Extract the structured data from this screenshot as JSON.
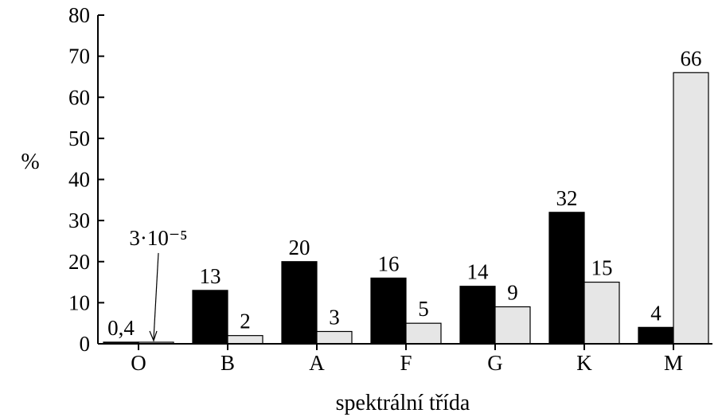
{
  "chart_data": {
    "type": "bar",
    "categories": [
      "O",
      "B",
      "A",
      "F",
      "G",
      "K",
      "M"
    ],
    "series": [
      {
        "color": "#000000",
        "values": [
          0.4,
          13,
          20,
          16,
          14,
          32,
          4
        ],
        "labels": [
          "0,4",
          "13",
          "20",
          "16",
          "14",
          "32",
          "4"
        ]
      },
      {
        "color": "#e6e6e6",
        "values": [
          3e-05,
          2,
          3,
          5,
          9,
          15,
          66
        ],
        "labels": [
          "3·10⁻⁵",
          "2",
          "3",
          "5",
          "9",
          "15",
          "66"
        ]
      }
    ],
    "xlabel": "spektrální třída",
    "ylabel": "%",
    "ylim": [
      0,
      80
    ],
    "yticks": [
      0,
      10,
      20,
      30,
      40,
      50,
      60,
      70,
      80
    ],
    "grid": false,
    "legend": "none"
  }
}
